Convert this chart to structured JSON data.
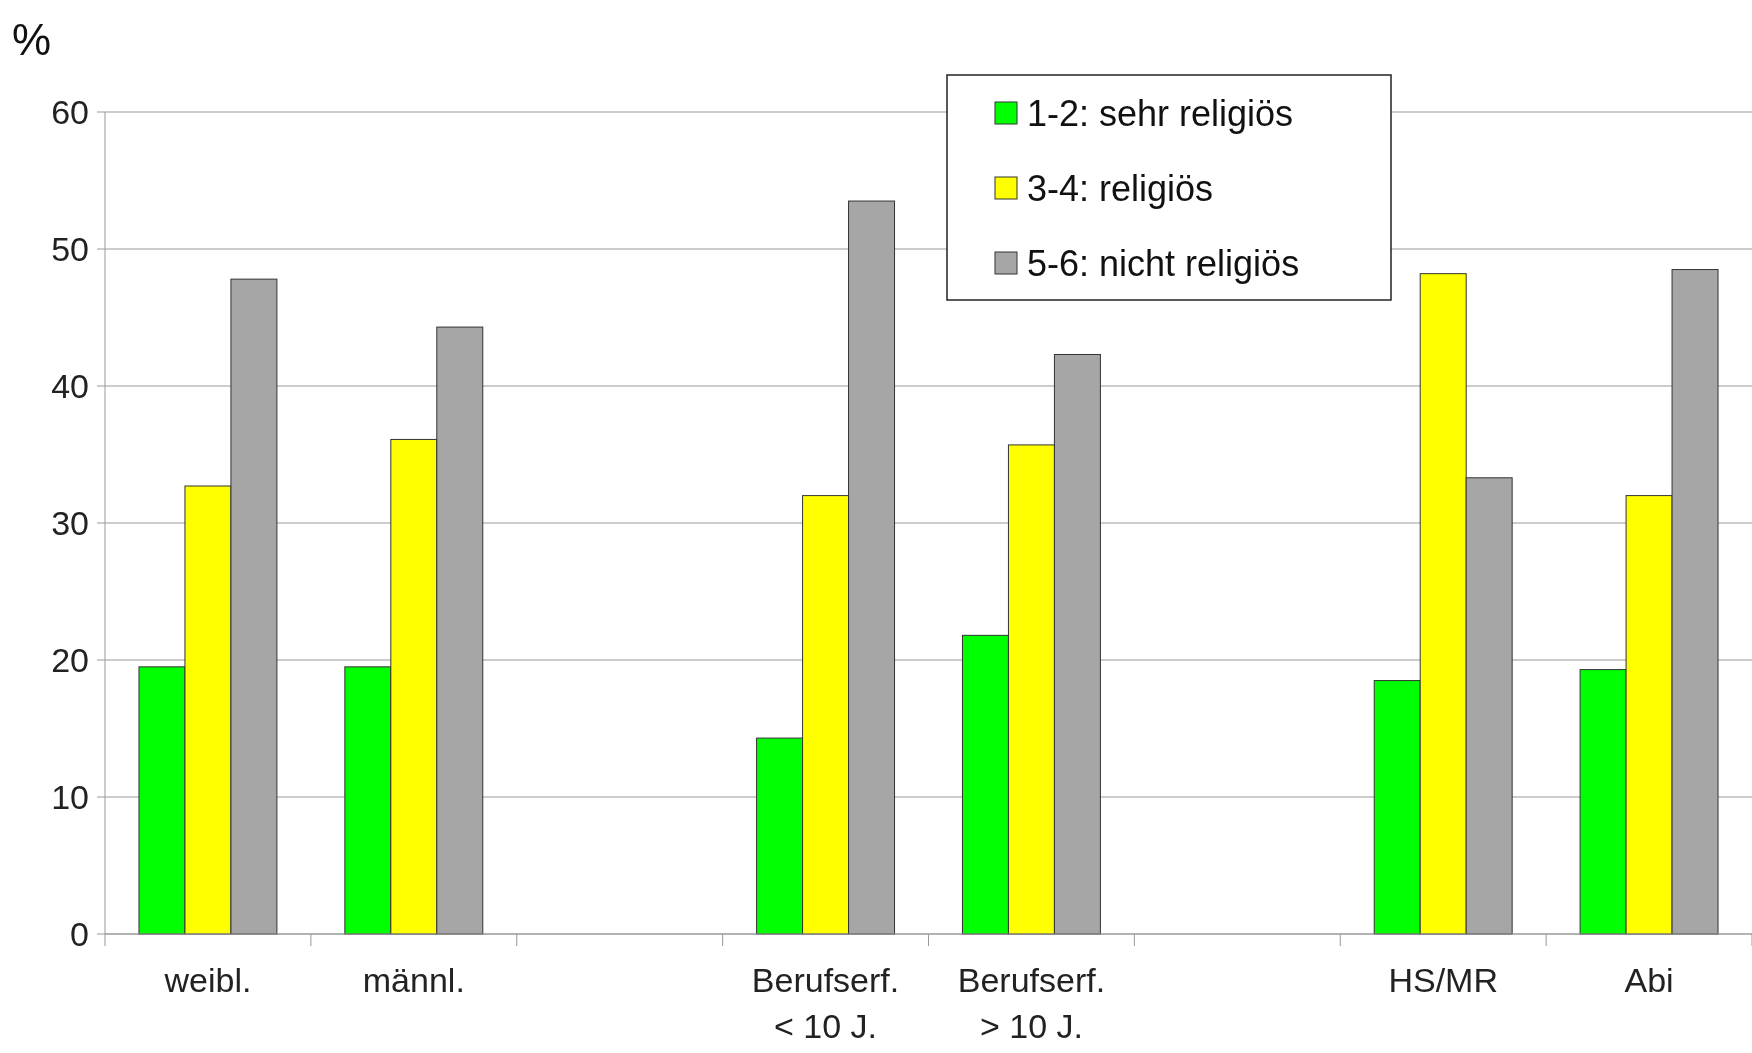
{
  "chart_data": {
    "type": "bar",
    "ylabel": "%",
    "categories": [
      "weibl.",
      "männl.",
      null,
      "Berufserf.\n< 10 J.",
      "Berufserf.\n> 10 J.",
      null,
      "HS/MR",
      "Abi"
    ],
    "series": [
      {
        "name": "1-2: sehr religiös",
        "color": "#00ff00",
        "values": [
          19.5,
          19.5,
          null,
          14.3,
          21.8,
          null,
          18.5,
          19.3
        ]
      },
      {
        "name": "3-4: religiös",
        "color": "#ffff00",
        "values": [
          32.7,
          36.1,
          null,
          32.0,
          35.7,
          null,
          48.2,
          32.0
        ]
      },
      {
        "name": "5-6: nicht religiös",
        "color": "#a6a6a6",
        "values": [
          47.8,
          44.3,
          null,
          53.5,
          42.3,
          null,
          33.3,
          48.5
        ]
      }
    ],
    "ylim": [
      0,
      60
    ],
    "yticks": [
      0,
      10,
      20,
      30,
      40,
      50,
      60
    ],
    "grid": "y",
    "legend": "top right"
  }
}
